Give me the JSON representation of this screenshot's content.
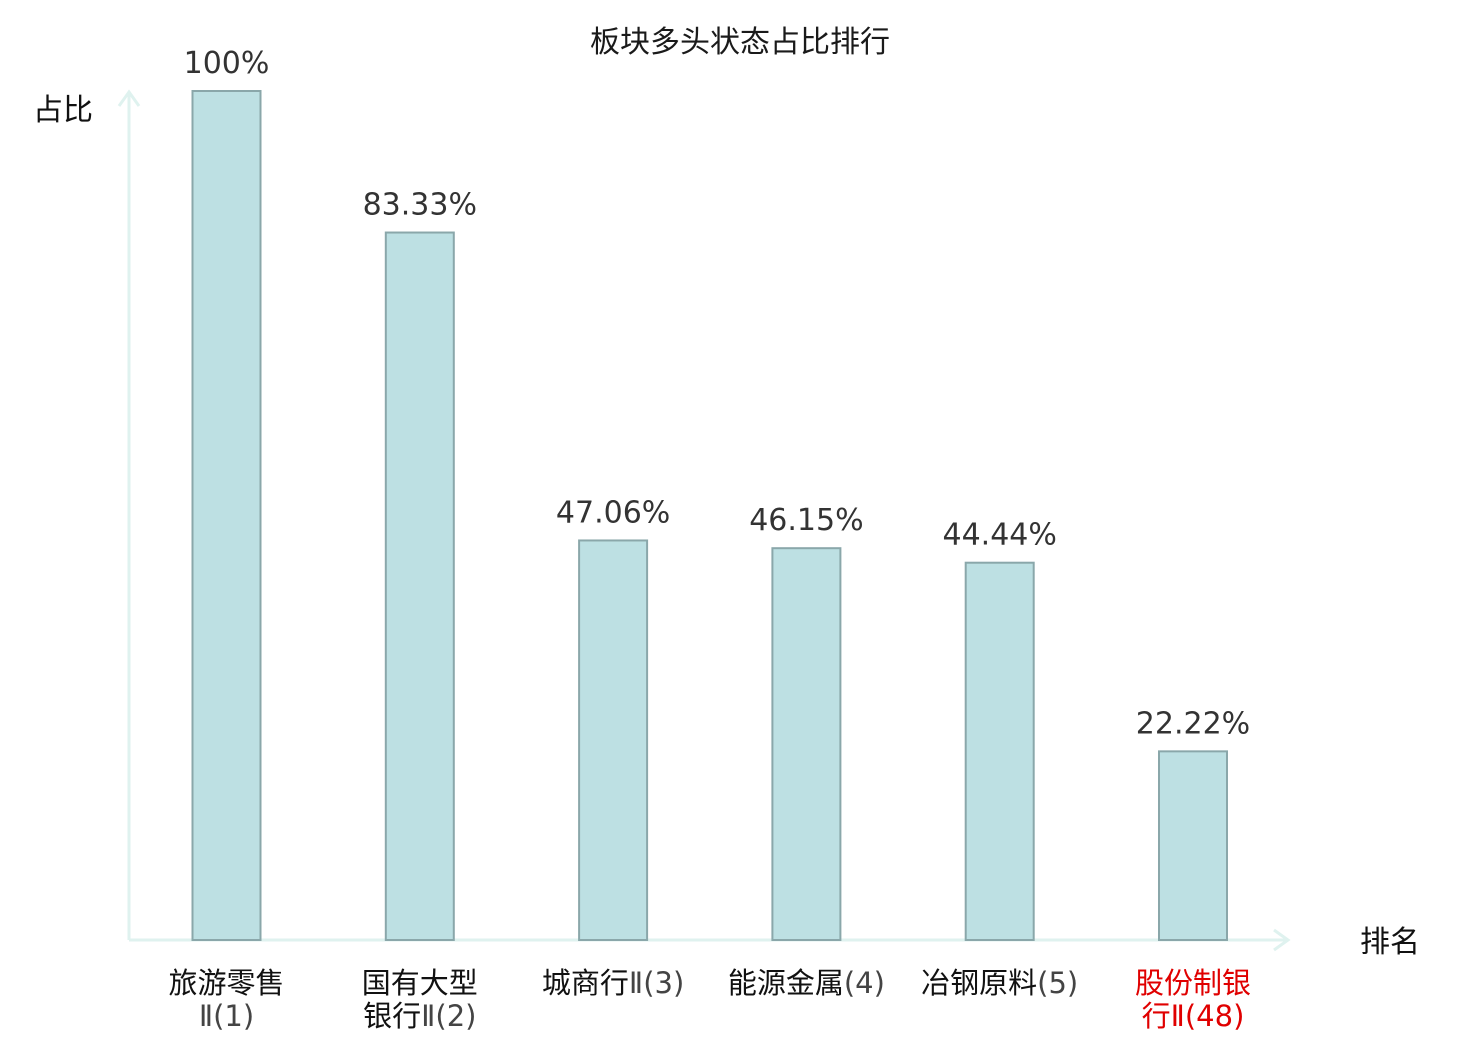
{
  "chart_data": {
    "type": "bar",
    "title": "板块多头状态占比排行",
    "ylabel": "占比",
    "xlabel": "排名",
    "ylim": [
      0,
      100
    ],
    "grid": false,
    "colors": {
      "bar_fill": "#bde0e3",
      "bar_stroke": "#8aa7aa",
      "axis": "#dff2ef",
      "highlight": "#e00000"
    },
    "categories": [
      {
        "lines": [
          {
            "name": "旅游零售",
            "rank": ""
          },
          {
            "name": "",
            "rank": "Ⅱ(1)"
          }
        ],
        "highlight": false
      },
      {
        "lines": [
          {
            "name": "国有大型",
            "rank": ""
          },
          {
            "name": "银行",
            "rank": "Ⅱ(2)"
          }
        ],
        "highlight": false
      },
      {
        "lines": [
          {
            "name": "城商行",
            "rank": "Ⅱ(3)"
          }
        ],
        "highlight": false
      },
      {
        "lines": [
          {
            "name": "能源金属",
            "rank": "(4)"
          }
        ],
        "highlight": false
      },
      {
        "lines": [
          {
            "name": "冶钢原料",
            "rank": "(5)"
          }
        ],
        "highlight": false
      },
      {
        "lines": [
          {
            "name": "股份制银",
            "rank": ""
          },
          {
            "name": "行",
            "rank": "Ⅱ(48)"
          }
        ],
        "highlight": true
      }
    ],
    "values": [
      100,
      83.33,
      47.06,
      46.15,
      44.44,
      22.22
    ],
    "value_labels": [
      "100%",
      "83.33%",
      "47.06%",
      "46.15%",
      "44.44%",
      "22.22%"
    ]
  }
}
